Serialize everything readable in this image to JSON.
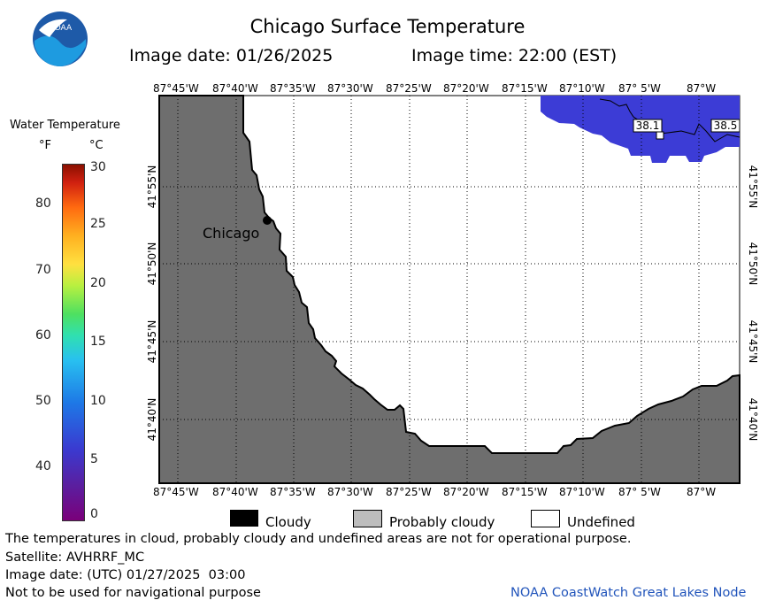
{
  "header": {
    "title": "Chicago Surface Temperature",
    "image_date": "Image date: 01/26/2025",
    "image_time": "Image time: 22:00 (EST)"
  },
  "colorbar": {
    "title": "Water Temperature",
    "unit_f": "°F",
    "unit_c": "°C",
    "f_ticks": [
      "80",
      "70",
      "60",
      "50",
      "40"
    ],
    "c_ticks": [
      "30",
      "25",
      "20",
      "15",
      "10",
      "5",
      "0"
    ]
  },
  "map": {
    "lon_labels": [
      "87°45'W",
      "87°40'W",
      "87°35'W",
      "87°30'W",
      "87°25'W",
      "87°20'W",
      "87°15'W",
      "87°10'W",
      "87° 5'W",
      "87°W"
    ],
    "lat_labels": [
      "41°55'N",
      "41°50'N",
      "41°45'N",
      "41°40'N"
    ],
    "city_label": "Chicago",
    "values": [
      "38.1",
      "38.5"
    ],
    "colors": {
      "land": "#6e6e6e",
      "water_cold": "#3c3cd6",
      "city": "#000000"
    }
  },
  "legend": {
    "cloudy": "Cloudy",
    "probably_cloudy": "Probably cloudy",
    "undefined": "Undefined"
  },
  "footer": {
    "disclaimer": "The temperatures in cloud, probably cloudy and undefined areas are not for operational purpose.",
    "satellite": "Satellite: AVHRRF_MC",
    "utc_date": "Image date: (UTC) 01/27/2025  03:00",
    "nav": "Not to be used for navigational purpose",
    "credit": "NOAA CoastWatch Great Lakes Node"
  },
  "logo_text": "NOAA"
}
